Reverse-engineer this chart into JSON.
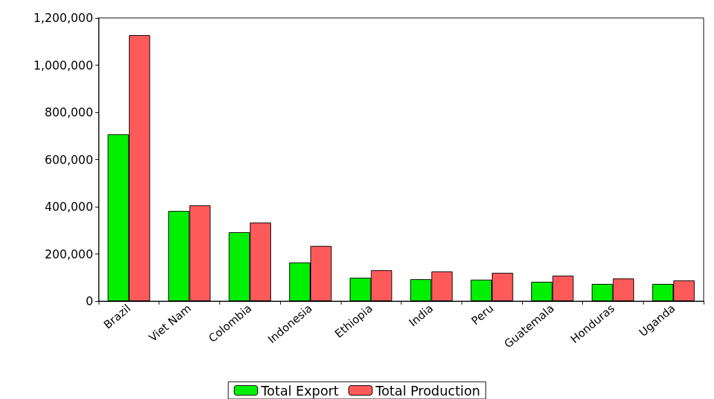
{
  "chart_data": {
    "type": "bar",
    "categories": [
      "Brazil",
      "Viet Nam",
      "Colombia",
      "Indonesia",
      "Ethiopia",
      "India",
      "Peru",
      "Guatemala",
      "Honduras",
      "Uganda"
    ],
    "series": [
      {
        "name": "Total Export",
        "color": "#00f000",
        "values": [
          707000,
          382000,
          292000,
          164000,
          99000,
          93000,
          91000,
          82000,
          73000,
          73000
        ]
      },
      {
        "name": "Total Production",
        "color": "#ff5a5a",
        "values": [
          1127000,
          406000,
          333000,
          234000,
          131000,
          126000,
          120000,
          108000,
          96000,
          88000
        ]
      }
    ],
    "ylim": [
      0,
      1200000
    ],
    "yticks": [
      0,
      {
        "value": 200000,
        "label": "200,000"
      },
      {
        "value": 400000,
        "label": "400,000"
      },
      {
        "value": 600000,
        "label": "600,000"
      },
      {
        "value": 800000,
        "label": "800,000"
      },
      {
        "value": 1000000,
        "label": "1,000,000"
      },
      {
        "value": 1200000,
        "label": "1,200,000"
      }
    ],
    "grid": false,
    "legend": "bottom"
  }
}
